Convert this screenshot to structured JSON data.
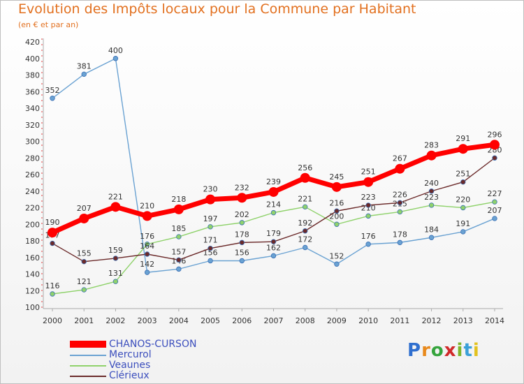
{
  "title": "Evolution des Impôts locaux pour la Commune par Habitant",
  "subtitle": "(en € et par an)",
  "brand": {
    "letters": [
      "P",
      "r",
      "o",
      "x",
      "i",
      "t",
      "i"
    ],
    "colors": [
      "#2f6fcf",
      "#e8891c",
      "#35a43d",
      "#d02a2a",
      "#7db52a",
      "#3aa0d8",
      "#e2c21f"
    ]
  },
  "chart_data": {
    "type": "line",
    "title": "Evolution des Impôts locaux pour la Commune par Habitant",
    "ylabel": "(en € et par an)",
    "xlabel": "",
    "ylim": [
      100,
      420
    ],
    "y_ticks": [
      100,
      120,
      140,
      160,
      180,
      200,
      220,
      240,
      260,
      280,
      300,
      320,
      340,
      360,
      380,
      400,
      420
    ],
    "categories": [
      "2000",
      "2001",
      "2002",
      "2003",
      "2004",
      "2005",
      "2006",
      "2007",
      "2008",
      "2009",
      "2010",
      "2011",
      "2012",
      "2013",
      "2014"
    ],
    "series": [
      {
        "name": "Mercurol",
        "color": "#6aa2d2",
        "values": [
          352,
          381,
          400,
          142,
          146,
          156,
          156,
          162,
          172,
          152,
          176,
          178,
          184,
          191,
          207
        ],
        "labels": [
          "352",
          "381",
          "400",
          "142",
          "146",
          "156",
          "156",
          "162",
          "172",
          "152",
          "176",
          "178",
          "184",
          "191",
          "207"
        ]
      },
      {
        "name": "Veaunes",
        "color": "#8fd26b",
        "values": [
          116,
          121,
          131,
          176,
          185,
          197,
          202,
          214,
          221,
          200,
          210,
          215,
          223,
          220,
          227
        ],
        "labels": [
          "116",
          "121",
          "131",
          "176",
          "185",
          "197",
          "202",
          "214",
          "221",
          "200",
          "210",
          "215",
          "223",
          "220",
          "227"
        ]
      },
      {
        "name": "Clérieux",
        "color": "#6b2a2a",
        "values": [
          177,
          155,
          159,
          164,
          157,
          171,
          178,
          179,
          192,
          216,
          223,
          226,
          240,
          251,
          280
        ],
        "labels": [
          "177",
          "155",
          "159",
          "164",
          "157",
          "171",
          "178",
          "179",
          "192",
          "216",
          "223",
          "226",
          "240",
          "251",
          "280"
        ]
      },
      {
        "name": "CHANOS-CURSON",
        "color": "#ff0000",
        "values": [
          190,
          207,
          221,
          210,
          218,
          230,
          232,
          239,
          256,
          245,
          251,
          267,
          283,
          291,
          296
        ],
        "labels": [
          "190",
          "207",
          "221",
          "210",
          "218",
          "230",
          "232",
          "239",
          "256",
          "245",
          "251",
          "267",
          "283",
          "291",
          "296"
        ]
      }
    ],
    "legend": [
      "CHANOS-CURSON",
      "Mercurol",
      "Veaunes",
      "Clérieux"
    ],
    "grid": false,
    "legend_position": "bottom-left"
  }
}
